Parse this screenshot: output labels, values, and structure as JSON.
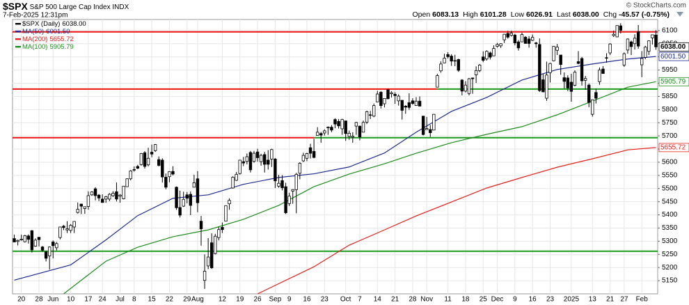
{
  "header": {
    "symbol": "$SPX",
    "name": "S&P 500 Large Cap Index",
    "exchange": "INDX",
    "datetime": "7-Feb-2025 12:31pm",
    "quote": [
      {
        "label": "Open",
        "value": "6083.13"
      },
      {
        "label": "High",
        "value": "6101.28"
      },
      {
        "label": "Low",
        "value": "6026.91"
      },
      {
        "label": "Last",
        "value": "6038.00"
      },
      {
        "label": "Chg",
        "value": "-45.57 (-0.75%)"
      }
    ],
    "copyright": "© StockCharts.com"
  },
  "chart_data": {
    "type": "candlestick",
    "price": {
      "name": "$SPX (Daily)",
      "last": "6038.00",
      "color": "#000000"
    },
    "categories": [
      null,
      null,
      "20",
      null,
      null,
      null,
      null,
      "28",
      null,
      null,
      null,
      "Jun",
      null,
      null,
      null,
      null,
      "10",
      null,
      null,
      null,
      null,
      "17",
      null,
      null,
      null,
      "24",
      null,
      null,
      null,
      null,
      "Jul",
      null,
      null,
      null,
      "8",
      null,
      null,
      null,
      null,
      "15",
      null,
      null,
      null,
      null,
      "22",
      null,
      null,
      null,
      null,
      "29",
      null,
      null,
      "Aug",
      null,
      null,
      null,
      null,
      null,
      null,
      "12",
      null,
      null,
      null,
      null,
      "19",
      null,
      null,
      null,
      null,
      "26",
      null,
      null,
      null,
      null,
      "Sep",
      null,
      null,
      null,
      "9",
      null,
      null,
      null,
      null,
      "16",
      null,
      null,
      null,
      null,
      "23",
      null,
      null,
      null,
      null,
      null,
      "Oct",
      null,
      null,
      null,
      "7",
      null,
      null,
      null,
      null,
      "14",
      null,
      null,
      null,
      null,
      "21",
      null,
      null,
      null,
      null,
      "28",
      null,
      null,
      null,
      "Nov",
      null,
      null,
      null,
      null,
      null,
      "11",
      null,
      null,
      null,
      null,
      "18",
      null,
      null,
      null,
      null,
      "25",
      null,
      null,
      null,
      "Dec",
      null,
      null,
      null,
      null,
      "9",
      null,
      null,
      null,
      null,
      "16",
      null,
      null,
      null,
      null,
      "23",
      null,
      null,
      null,
      null,
      null,
      "2025",
      null,
      null,
      null,
      null,
      null,
      "13",
      null,
      null,
      null,
      null,
      "21",
      null,
      null,
      null,
      "27",
      null,
      null,
      null,
      null,
      "Feb",
      null,
      null,
      null,
      null
    ],
    "ohlc": [
      [
        5310,
        5325,
        5296,
        5297
      ],
      [
        5299,
        5306,
        5284,
        5303
      ],
      [
        5305,
        5325,
        5302,
        5308
      ],
      [
        5298,
        5324,
        5295,
        5321
      ],
      [
        5320,
        5326,
        5291,
        5307
      ],
      [
        5340,
        5342,
        5257,
        5267
      ],
      [
        5281,
        5311,
        5279,
        5304
      ],
      [
        5315,
        5315,
        5280,
        5306
      ],
      [
        5278,
        5282,
        5260,
        5266
      ],
      [
        5259,
        5263,
        5223,
        5235
      ],
      [
        5244,
        5280,
        5192,
        5278
      ],
      [
        5297,
        5303,
        5235,
        5283
      ],
      [
        5275,
        5297,
        5265,
        5291
      ],
      [
        5314,
        5355,
        5307,
        5354
      ],
      [
        5357,
        5362,
        5342,
        5352
      ],
      [
        5343,
        5376,
        5331,
        5347
      ],
      [
        5341,
        5365,
        5331,
        5360
      ],
      [
        5354,
        5376,
        5331,
        5375
      ],
      [
        5409,
        5447,
        5405,
        5421
      ],
      [
        5441,
        5442,
        5403,
        5433
      ],
      [
        5424,
        5432,
        5404,
        5431
      ],
      [
        5432,
        5489,
        5420,
        5473
      ],
      [
        5476,
        5490,
        5472,
        5487
      ],
      [
        5499,
        5505,
        5455,
        5473
      ],
      [
        5475,
        5479,
        5452,
        5464
      ],
      [
        5460,
        5478,
        5447,
        5447
      ],
      [
        5460,
        5472,
        5446,
        5469
      ],
      [
        5460,
        5483,
        5452,
        5478
      ],
      [
        5473,
        5490,
        5468,
        5482
      ],
      [
        5488,
        5523,
        5451,
        5460
      ],
      [
        5471,
        5479,
        5446,
        5475
      ],
      [
        5461,
        5510,
        5459,
        5509
      ],
      [
        5507,
        5539,
        5507,
        5537
      ],
      [
        5537,
        5570,
        5531,
        5567
      ],
      [
        5572,
        5584,
        5564,
        5572
      ],
      [
        5584,
        5590,
        5574,
        5577
      ],
      [
        5591,
        5635,
        5587,
        5633
      ],
      [
        5636,
        5642,
        5576,
        5584
      ],
      [
        5590,
        5655,
        5584,
        5615
      ],
      [
        5638,
        5667,
        5619,
        5631
      ],
      [
        5644,
        5669,
        5639,
        5667
      ],
      [
        5610,
        5622,
        5584,
        5588
      ],
      [
        5608,
        5615,
        5523,
        5544
      ],
      [
        5543,
        5557,
        5497,
        5505
      ],
      [
        5545,
        5566,
        5524,
        5564
      ],
      [
        5565,
        5585,
        5550,
        5555
      ],
      [
        5505,
        5508,
        5419,
        5427
      ],
      [
        5428,
        5492,
        5390,
        5399
      ],
      [
        5433,
        5488,
        5430,
        5459
      ],
      [
        5476,
        5487,
        5444,
        5463
      ],
      [
        5478,
        5489,
        5399,
        5436
      ],
      [
        5505,
        5552,
        5505,
        5522
      ],
      [
        5537,
        5566,
        5410,
        5446
      ],
      [
        5376,
        5396,
        5283,
        5347
      ],
      [
        5151,
        5250,
        5119,
        5186
      ],
      [
        5206,
        5312,
        5194,
        5240
      ],
      [
        5294,
        5330,
        5195,
        5199
      ],
      [
        5253,
        5328,
        5250,
        5319
      ],
      [
        5314,
        5354,
        5303,
        5344
      ],
      [
        5353,
        5371,
        5331,
        5344
      ],
      [
        5376,
        5436,
        5376,
        5435
      ],
      [
        5442,
        5463,
        5420,
        5455
      ],
      [
        5502,
        5546,
        5500,
        5543
      ],
      [
        5531,
        5563,
        5529,
        5554
      ],
      [
        5557,
        5609,
        5553,
        5608
      ],
      [
        5602,
        5620,
        5585,
        5597
      ],
      [
        5603,
        5633,
        5592,
        5621
      ],
      [
        5637,
        5643,
        5561,
        5571
      ],
      [
        5603,
        5643,
        5598,
        5634
      ],
      [
        5639,
        5651,
        5602,
        5617
      ],
      [
        5602,
        5632,
        5587,
        5626
      ],
      [
        5629,
        5639,
        5561,
        5592
      ],
      [
        5608,
        5646,
        5572,
        5592
      ],
      [
        5612,
        5651,
        5582,
        5648
      ],
      [
        5612,
        5616,
        5502,
        5529
      ],
      [
        5509,
        5552,
        5503,
        5520
      ],
      [
        5530,
        5551,
        5493,
        5503
      ],
      [
        5507,
        5522,
        5403,
        5408
      ],
      [
        5443,
        5484,
        5434,
        5471
      ],
      [
        5490,
        5497,
        5442,
        5496
      ],
      [
        5496,
        5560,
        5406,
        5554
      ],
      [
        5558,
        5600,
        5535,
        5596
      ],
      [
        5605,
        5636,
        5601,
        5626
      ],
      [
        5615,
        5636,
        5604,
        5633
      ],
      [
        5655,
        5670,
        5614,
        5634
      ],
      [
        5641,
        5689,
        5615,
        5618
      ],
      [
        5702,
        5733,
        5701,
        5714
      ],
      [
        5709,
        5715,
        5674,
        5703
      ],
      [
        5711,
        5725,
        5701,
        5719
      ],
      [
        5733,
        5736,
        5704,
        5732
      ],
      [
        5733,
        5741,
        5714,
        5722
      ],
      [
        5762,
        5767,
        5729,
        5745
      ],
      [
        5755,
        5764,
        5728,
        5738
      ],
      [
        5727,
        5765,
        5704,
        5762
      ],
      [
        5757,
        5757,
        5681,
        5709
      ],
      [
        5698,
        5720,
        5685,
        5710
      ],
      [
        5695,
        5714,
        5674,
        5699
      ],
      [
        5737,
        5753,
        5704,
        5751
      ],
      [
        5737,
        5739,
        5683,
        5696
      ],
      [
        5714,
        5758,
        5714,
        5751
      ],
      [
        5752,
        5796,
        5745,
        5792
      ],
      [
        5779,
        5795,
        5764,
        5780
      ],
      [
        5775,
        5823,
        5771,
        5815
      ],
      [
        5829,
        5871,
        5828,
        5859
      ],
      [
        5866,
        5870,
        5804,
        5815
      ],
      [
        5822,
        5843,
        5808,
        5842
      ],
      [
        5875,
        5879,
        5839,
        5841
      ],
      [
        5860,
        5870,
        5846,
        5864
      ],
      [
        5858,
        5866,
        5822,
        5853
      ],
      [
        5833,
        5858,
        5815,
        5851
      ],
      [
        5835,
        5836,
        5762,
        5797
      ],
      [
        5813,
        5817,
        5784,
        5809
      ],
      [
        5826,
        5862,
        5799,
        5808
      ],
      [
        5833,
        5843,
        5818,
        5823
      ],
      [
        5815,
        5847,
        5814,
        5832
      ],
      [
        5832,
        5850,
        5812,
        5813
      ],
      [
        5775,
        5776,
        5702,
        5705
      ],
      [
        5724,
        5772,
        5723,
        5728
      ],
      [
        5724,
        5741,
        5696,
        5712
      ],
      [
        5722,
        5783,
        5722,
        5782
      ],
      [
        5885,
        5936,
        5885,
        5929
      ],
      [
        5947,
        5983,
        5940,
        5973
      ],
      [
        5977,
        6012,
        5976,
        5995
      ],
      [
        6009,
        6018,
        5994,
        6001
      ],
      [
        6003,
        6010,
        5966,
        5984
      ],
      [
        5986,
        6008,
        5965,
        5985
      ],
      [
        5990,
        5993,
        5943,
        5949
      ],
      [
        5912,
        5915,
        5854,
        5870
      ],
      [
        5870,
        5908,
        5865,
        5893
      ],
      [
        5861,
        5920,
        5854,
        5917
      ],
      [
        5920,
        5921,
        5860,
        5917
      ],
      [
        5932,
        5964,
        5901,
        5948
      ],
      [
        5948,
        5973,
        5942,
        5969
      ],
      [
        6000,
        6021,
        5980,
        5987
      ],
      [
        5992,
        6025,
        5986,
        6021
      ],
      [
        6015,
        6020,
        5990,
        5999
      ],
      [
        6004,
        6044,
        6003,
        6032
      ],
      [
        6040,
        6053,
        6035,
        6047
      ],
      [
        6042,
        6052,
        6034,
        6050
      ],
      [
        6065,
        6087,
        6053,
        6086
      ],
      [
        6089,
        6099,
        6069,
        6075
      ],
      [
        6082,
        6099,
        6077,
        6090
      ],
      [
        6083,
        6088,
        6044,
        6053
      ],
      [
        6057,
        6064,
        6024,
        6034
      ],
      [
        6057,
        6092,
        6056,
        6085
      ],
      [
        6075,
        6079,
        6051,
        6051
      ],
      [
        6068,
        6079,
        6035,
        6051
      ],
      [
        6063,
        6085,
        6060,
        6074
      ],
      [
        6053,
        6057,
        6035,
        6050
      ],
      [
        6047,
        6070,
        5867,
        5872
      ],
      [
        5913,
        5935,
        5866,
        5867
      ],
      [
        5843,
        5982,
        5833,
        5931
      ],
      [
        5940,
        5978,
        5903,
        5975
      ],
      [
        5985,
        6041,
        5983,
        6040
      ],
      [
        6025,
        6049,
        6007,
        6037
      ],
      [
        6007,
        6007,
        5932,
        5971
      ],
      [
        5921,
        5941,
        5880,
        5907
      ],
      [
        5920,
        5930,
        5870,
        5882
      ],
      [
        5904,
        5936,
        5830,
        5869
      ],
      [
        5892,
        5949,
        5888,
        5942
      ],
      [
        5982,
        6022,
        5972,
        5975
      ],
      [
        5994,
        6000,
        5891,
        5909
      ],
      [
        5911,
        5928,
        5875,
        5918
      ],
      [
        5893,
        5899,
        5809,
        5827
      ],
      [
        5782,
        5837,
        5773,
        5837
      ],
      [
        5865,
        5879,
        5823,
        5843
      ],
      [
        5906,
        5960,
        5894,
        5950
      ],
      [
        5954,
        5965,
        5936,
        5937
      ],
      [
        5996,
        6014,
        5978,
        5997
      ],
      [
        6015,
        6052,
        6007,
        6049
      ],
      [
        6081,
        6100,
        6076,
        6086
      ],
      [
        6076,
        6119,
        6075,
        6119
      ],
      [
        6118,
        6128,
        6089,
        6101
      ],
      [
        5969,
        6017,
        5962,
        6012
      ],
      [
        6026,
        6070,
        6012,
        6068
      ],
      [
        6057,
        6062,
        6007,
        6039
      ],
      [
        6050,
        6086,
        6028,
        6071
      ],
      [
        6096,
        6121,
        6031,
        6041
      ],
      [
        5970,
        6022,
        5923,
        5994
      ],
      [
        5998,
        6042,
        5991,
        6037
      ],
      [
        6021,
        6062,
        6007,
        6061
      ],
      [
        6072,
        6084,
        6047,
        6084
      ],
      [
        6083.13,
        6101.28,
        6026.91,
        6038
      ]
    ],
    "series": [
      {
        "name": "MA(50)",
        "last": "6001.50",
        "color": "#1c2a8e",
        "x": [
          0,
          16,
          26,
          35,
          45,
          55,
          65,
          75,
          85,
          95,
          105,
          114,
          124,
          134,
          144,
          154,
          164,
          174,
          182
        ],
        "values": [
          5152,
          5210,
          5305,
          5397,
          5463,
          5476,
          5516,
          5542,
          5556,
          5582,
          5635,
          5714,
          5793,
          5846,
          5912,
          5952,
          5973,
          5992,
          6001.5
        ]
      },
      {
        "name": "MA(200)",
        "last": "5655.72",
        "color": "#e3201b",
        "x": [
          69,
          85,
          95,
          105,
          114,
          124,
          134,
          144,
          154,
          164,
          174,
          182
        ],
        "values": [
          5100,
          5203,
          5285,
          5343,
          5396,
          5449,
          5502,
          5542,
          5581,
          5613,
          5647,
          5655.72
        ]
      },
      {
        "name": "MA(100)",
        "last": "5905.79",
        "color": "#1e8a1e",
        "x": [
          14,
          26,
          35,
          45,
          55,
          65,
          75,
          85,
          95,
          105,
          114,
          124,
          134,
          144,
          154,
          164,
          174,
          182
        ],
        "values": [
          5100,
          5224,
          5277,
          5317,
          5343,
          5383,
          5436,
          5507,
          5555,
          5594,
          5634,
          5674,
          5706,
          5735,
          5780,
          5832,
          5885,
          5905.79
        ]
      }
    ],
    "hlines": [
      {
        "value": 6095,
        "x": [
          0,
          182
        ],
        "color": "#ee1111"
      },
      {
        "value": 5878,
        "x": [
          0,
          120
        ],
        "color": "#ee1111"
      },
      {
        "value": 5878,
        "x": [
          120,
          182
        ],
        "color": "#1a9a1a"
      },
      {
        "value": 5693,
        "x": [
          0,
          85
        ],
        "color": "#ee1111"
      },
      {
        "value": 5693,
        "x": [
          85,
          182
        ],
        "color": "#1a9a1a"
      },
      {
        "value": 5262,
        "x": [
          0,
          182
        ],
        "color": "#1a9a1a"
      }
    ],
    "ylim": [
      5100,
      6142
    ],
    "yticks": [
      5150,
      5200,
      5250,
      5300,
      5350,
      5400,
      5450,
      5500,
      5550,
      5600,
      5650,
      5700,
      5750,
      5800,
      5850,
      5900,
      5950,
      6000,
      6050,
      6100
    ],
    "grid": true,
    "legend": "top-left"
  }
}
